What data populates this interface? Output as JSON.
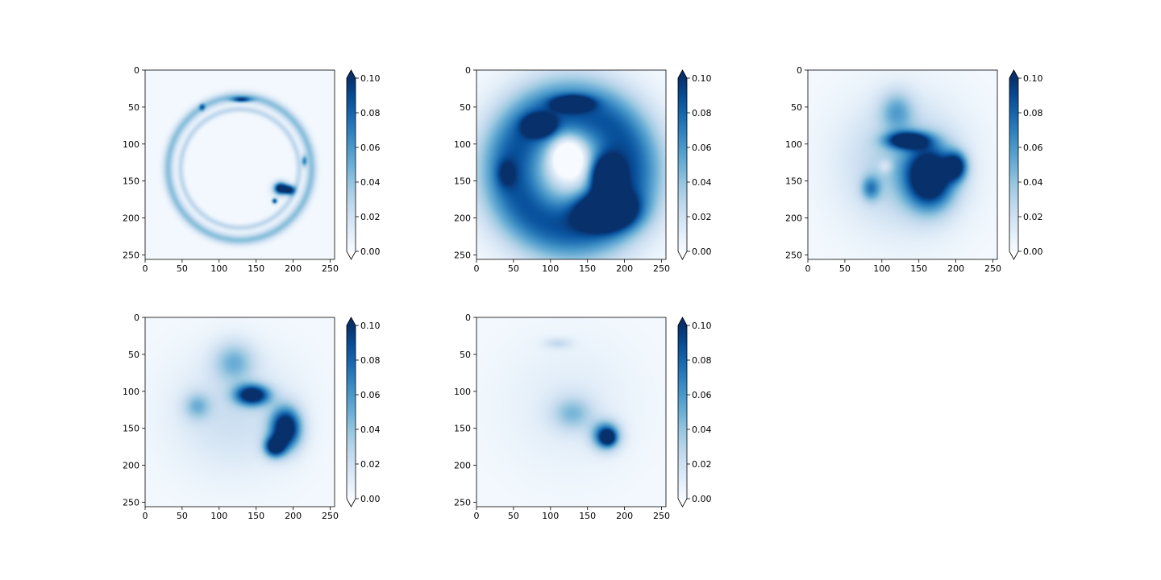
{
  "chart_data": [
    {
      "type": "heatmap",
      "panel": "top-left",
      "pattern": "thin ring with dense blob at lower right",
      "x_ticks": [
        "0",
        "50",
        "100",
        "150",
        "200",
        "250"
      ],
      "y_ticks": [
        "0",
        "50",
        "100",
        "150",
        "200",
        "250"
      ],
      "xlim": [
        0,
        256
      ],
      "ylim": [
        256,
        0
      ],
      "colormap": "Blues",
      "color_range": [
        0.0,
        0.1
      ],
      "colorbar_ticks": [
        "0.00",
        "0.02",
        "0.04",
        "0.06",
        "0.08",
        "0.10"
      ],
      "colorbar_extend": "both",
      "features": [
        {
          "shape": "ring",
          "cx": 128,
          "cy": 133,
          "r": 97,
          "width": 5,
          "value": 0.04
        },
        {
          "shape": "ring",
          "cx": 128,
          "cy": 133,
          "r": 80,
          "width": 3,
          "value": 0.025
        },
        {
          "shape": "blob",
          "cx": 183,
          "cy": 160,
          "rx": 10,
          "ry": 9,
          "value": 0.12
        },
        {
          "shape": "blob",
          "cx": 195,
          "cy": 162,
          "rx": 8,
          "ry": 7,
          "value": 0.1
        },
        {
          "shape": "blob",
          "cx": 175,
          "cy": 177,
          "rx": 4,
          "ry": 4,
          "value": 0.09
        },
        {
          "shape": "blob",
          "cx": 130,
          "cy": 40,
          "rx": 14,
          "ry": 4,
          "value": 0.07
        },
        {
          "shape": "blob",
          "cx": 77,
          "cy": 50,
          "rx": 4,
          "ry": 5,
          "value": 0.05
        },
        {
          "shape": "blob",
          "cx": 215,
          "cy": 123,
          "rx": 4,
          "ry": 8,
          "value": 0.06
        }
      ]
    },
    {
      "type": "heatmap",
      "panel": "top-middle",
      "pattern": "thick ring with dense lower-right lobe",
      "x_ticks": [
        "0",
        "50",
        "100",
        "150",
        "200",
        "250"
      ],
      "y_ticks": [
        "0",
        "50",
        "100",
        "150",
        "200",
        "250"
      ],
      "xlim": [
        0,
        256
      ],
      "ylim": [
        256,
        0
      ],
      "colormap": "Blues",
      "color_range": [
        0.0,
        0.1
      ],
      "colorbar_ticks": [
        "0.00",
        "0.02",
        "0.04",
        "0.06",
        "0.08",
        "0.10"
      ],
      "colorbar_extend": "both",
      "features": [
        {
          "shape": "ring",
          "cx": 128,
          "cy": 135,
          "r": 78,
          "width": 34,
          "value": 0.085
        },
        {
          "shape": "blob",
          "cx": 175,
          "cy": 190,
          "rx": 40,
          "ry": 25,
          "value": 0.13
        },
        {
          "shape": "blob",
          "cx": 175,
          "cy": 145,
          "rx": 22,
          "ry": 30,
          "value": 0.12
        },
        {
          "shape": "blob",
          "cx": 85,
          "cy": 75,
          "rx": 20,
          "ry": 14,
          "value": 0.11
        },
        {
          "shape": "blob",
          "cx": 130,
          "cy": 45,
          "rx": 26,
          "ry": 10,
          "value": 0.1
        },
        {
          "shape": "blob",
          "cx": 123,
          "cy": 115,
          "rx": 24,
          "ry": 28,
          "value": -0.06
        },
        {
          "shape": "blob",
          "cx": 40,
          "cy": 140,
          "rx": 14,
          "ry": 20,
          "value": 0.03
        }
      ]
    },
    {
      "type": "heatmap",
      "panel": "top-right",
      "pattern": "diffuse region with dense central block",
      "x_ticks": [
        "0",
        "50",
        "100",
        "150",
        "200",
        "250"
      ],
      "y_ticks": [
        "0",
        "50",
        "100",
        "150",
        "200",
        "250"
      ],
      "xlim": [
        0,
        256
      ],
      "ylim": [
        256,
        0
      ],
      "colormap": "Blues",
      "color_range": [
        0.0,
        0.1
      ],
      "colorbar_ticks": [
        "0.00",
        "0.02",
        "0.04",
        "0.06",
        "0.08",
        "0.10"
      ],
      "colorbar_extend": "both",
      "features": [
        {
          "shape": "blob",
          "cx": 128,
          "cy": 128,
          "rx": 85,
          "ry": 90,
          "value": 0.035
        },
        {
          "shape": "blob",
          "cx": 120,
          "cy": 55,
          "rx": 25,
          "ry": 30,
          "value": 0.04
        },
        {
          "shape": "blob",
          "cx": 165,
          "cy": 145,
          "rx": 35,
          "ry": 45,
          "value": 0.12
        },
        {
          "shape": "blob",
          "cx": 135,
          "cy": 95,
          "rx": 30,
          "ry": 12,
          "value": 0.11
        },
        {
          "shape": "blob",
          "cx": 200,
          "cy": 130,
          "rx": 16,
          "ry": 20,
          "value": 0.09
        },
        {
          "shape": "blob",
          "cx": 85,
          "cy": 160,
          "rx": 14,
          "ry": 18,
          "value": 0.05
        },
        {
          "shape": "blob",
          "cx": 105,
          "cy": 130,
          "rx": 10,
          "ry": 10,
          "value": -0.02
        }
      ]
    },
    {
      "type": "heatmap",
      "panel": "bottom-left",
      "pattern": "diffuse blobs with dense diagonal streak",
      "x_ticks": [
        "0",
        "50",
        "100",
        "150",
        "200",
        "250"
      ],
      "y_ticks": [
        "0",
        "50",
        "100",
        "150",
        "200",
        "250"
      ],
      "xlim": [
        0,
        256
      ],
      "ylim": [
        256,
        0
      ],
      "colormap": "Blues",
      "color_range": [
        0.0,
        0.1
      ],
      "colorbar_ticks": [
        "0.00",
        "0.02",
        "0.04",
        "0.06",
        "0.08",
        "0.10"
      ],
      "colorbar_extend": "both",
      "features": [
        {
          "shape": "blob",
          "cx": 120,
          "cy": 130,
          "rx": 90,
          "ry": 85,
          "value": 0.02
        },
        {
          "shape": "blob",
          "cx": 120,
          "cy": 60,
          "rx": 30,
          "ry": 30,
          "value": 0.04
        },
        {
          "shape": "blob",
          "cx": 145,
          "cy": 105,
          "rx": 25,
          "ry": 15,
          "value": 0.11
        },
        {
          "shape": "blob",
          "cx": 190,
          "cy": 150,
          "rx": 22,
          "ry": 30,
          "value": 0.12
        },
        {
          "shape": "blob",
          "cx": 175,
          "cy": 175,
          "rx": 15,
          "ry": 15,
          "value": 0.1
        },
        {
          "shape": "blob",
          "cx": 70,
          "cy": 120,
          "rx": 20,
          "ry": 20,
          "value": 0.035
        }
      ]
    },
    {
      "type": "heatmap",
      "panel": "bottom-middle",
      "pattern": "faint diffuse field with compact dense spot",
      "x_ticks": [
        "0",
        "50",
        "100",
        "150",
        "200",
        "250"
      ],
      "y_ticks": [
        "0",
        "50",
        "100",
        "150",
        "200",
        "250"
      ],
      "xlim": [
        0,
        256
      ],
      "ylim": [
        256,
        0
      ],
      "colormap": "Blues",
      "color_range": [
        0.0,
        0.1
      ],
      "colorbar_ticks": [
        "0.00",
        "0.02",
        "0.04",
        "0.06",
        "0.08",
        "0.10"
      ],
      "colorbar_extend": "both",
      "features": [
        {
          "shape": "blob",
          "cx": 125,
          "cy": 120,
          "rx": 95,
          "ry": 95,
          "value": 0.01
        },
        {
          "shape": "blob",
          "cx": 130,
          "cy": 130,
          "rx": 30,
          "ry": 25,
          "value": 0.035
        },
        {
          "shape": "blob",
          "cx": 175,
          "cy": 160,
          "rx": 20,
          "ry": 20,
          "value": 0.09
        },
        {
          "shape": "blob",
          "cx": 178,
          "cy": 163,
          "rx": 10,
          "ry": 10,
          "value": 0.06
        },
        {
          "shape": "blob",
          "cx": 110,
          "cy": 35,
          "rx": 20,
          "ry": 8,
          "value": 0.02
        }
      ]
    }
  ]
}
